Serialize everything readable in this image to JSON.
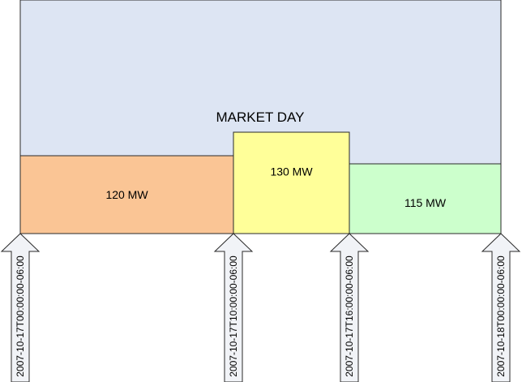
{
  "diagram": {
    "title": "MARKET DAY",
    "colors": {
      "market_day_fill": "#dde5f3",
      "outline": "#2a2a2a",
      "arrow_fill": "#f1f3f7"
    },
    "blocks": [
      {
        "label": "120 MW",
        "value_mw": 120,
        "start": "2007-10-17T00:00:00-06:00",
        "end": "2007-10-17T10:00:00-06:00",
        "fill": "#fac595"
      },
      {
        "label": "130 MW",
        "value_mw": 130,
        "start": "2007-10-17T10:00:00-06:00",
        "end": "2007-10-17T16:00:00-06:00",
        "fill": "#ffff99"
      },
      {
        "label": "115 MW",
        "value_mw": 115,
        "start": "2007-10-17T16:00:00-06:00",
        "end": "2007-10-18T00:00:00-06:00",
        "fill": "#ccffcc"
      }
    ],
    "markers": [
      {
        "label": "2007-10-17T00:00:00-06:00"
      },
      {
        "label": "2007-10-17T10:00:00-06:00"
      },
      {
        "label": "2007-10-17T16:00:00-06:00"
      },
      {
        "label": "2007-10-18T00:00:00-06:00"
      }
    ]
  }
}
